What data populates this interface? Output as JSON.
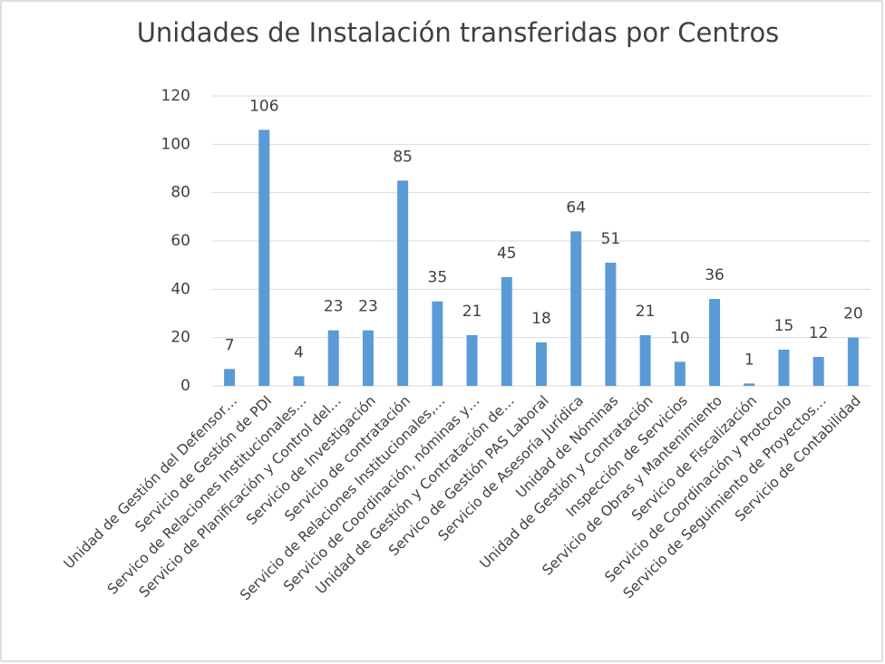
{
  "chart_data": {
    "type": "bar",
    "title": "Unidades de Instalación transferidas por Centros",
    "categories": [
      "Unidad de Gestión del Defensor…",
      "Servicio de Gestión de PDI",
      "Servico de Relaciones Institucionales…",
      "Servicio de Planificación y Control del…",
      "Servicio de Investigación",
      "Servicio de contratación",
      "Servicio de Relaciones Institucionales,…",
      "Servicio de Coordinación, nóminas y…",
      "Unidad de Gestión y Contratación de…",
      "Servico de Gestión PAS Laboral",
      "Servicio de Asesoría Jurídica",
      "Unidad de Nóminas",
      "Unidad de Gestión y Contratación",
      "Inspección de Servicios",
      "Servicio de Obras y Mantenimiento",
      "Servicio de Fiscalización",
      "Servicio de Coordinación y Protocolo",
      "Servicio de Seguimiento de Proyectos…",
      "Servicio de Contabilidad"
    ],
    "values": [
      7,
      106,
      4,
      23,
      23,
      85,
      35,
      21,
      45,
      18,
      64,
      51,
      21,
      10,
      36,
      1,
      15,
      12,
      20
    ],
    "color": "#5b9bd5",
    "ylim": [
      0,
      120
    ],
    "yticks": [
      0,
      20,
      40,
      60,
      80,
      100,
      120
    ],
    "grid": true
  }
}
